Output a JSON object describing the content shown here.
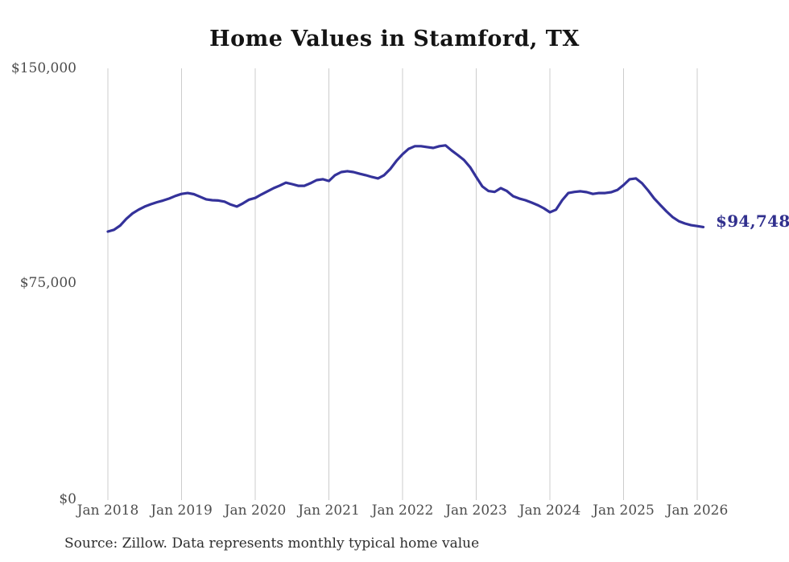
{
  "chart_data": {
    "type": "line",
    "title": "Home Values in Stamford, TX",
    "end_label": "$94,748",
    "latest_value": 94748,
    "source": "Source: Zillow. Data represents monthly typical home value",
    "ylim": [
      0,
      150000
    ],
    "grid": "vertical-only",
    "line_color": "#34329a",
    "gridline_color": "#cccccc",
    "y_ticks": [
      {
        "label": "$150,000",
        "value": 150000
      },
      {
        "label": "$75,000",
        "value": 75000
      },
      {
        "label": "$0",
        "value": 0
      }
    ],
    "x_tick_labels": [
      "Jan 2018",
      "Jan 2019",
      "Jan 2020",
      "Jan 2021",
      "Jan 2022",
      "Jan 2023",
      "Jan 2024",
      "Jan 2025",
      "Jan 2026"
    ],
    "series": [
      {
        "name": "Monthly typical home value",
        "start_month": "Jan 2018",
        "interval": "monthly",
        "values": [
          93200,
          93800,
          95300,
          97600,
          99500,
          100800,
          101900,
          102700,
          103400,
          104000,
          104700,
          105600,
          106300,
          106600,
          106200,
          105300,
          104400,
          104100,
          104000,
          103600,
          102600,
          101900,
          103000,
          104300,
          104900,
          106100,
          107200,
          108300,
          109200,
          110200,
          109700,
          109100,
          109100,
          110000,
          111100,
          111400,
          110800,
          112800,
          113900,
          114200,
          113900,
          113300,
          112800,
          112200,
          111700,
          112800,
          115000,
          117800,
          120100,
          122000,
          122900,
          122900,
          122600,
          122300,
          122900,
          123200,
          121400,
          119800,
          118100,
          115600,
          112200,
          108900,
          107300,
          107000,
          108300,
          107300,
          105500,
          104700,
          104100,
          103300,
          102400,
          101300,
          99900,
          100800,
          104100,
          106600,
          107000,
          107200,
          106900,
          106300,
          106600,
          106600,
          106900,
          107700,
          109400,
          111400,
          111700,
          110000,
          107500,
          104700,
          102400,
          100200,
          98200,
          96800,
          96000,
          95400,
          95100,
          94748
        ]
      }
    ]
  }
}
